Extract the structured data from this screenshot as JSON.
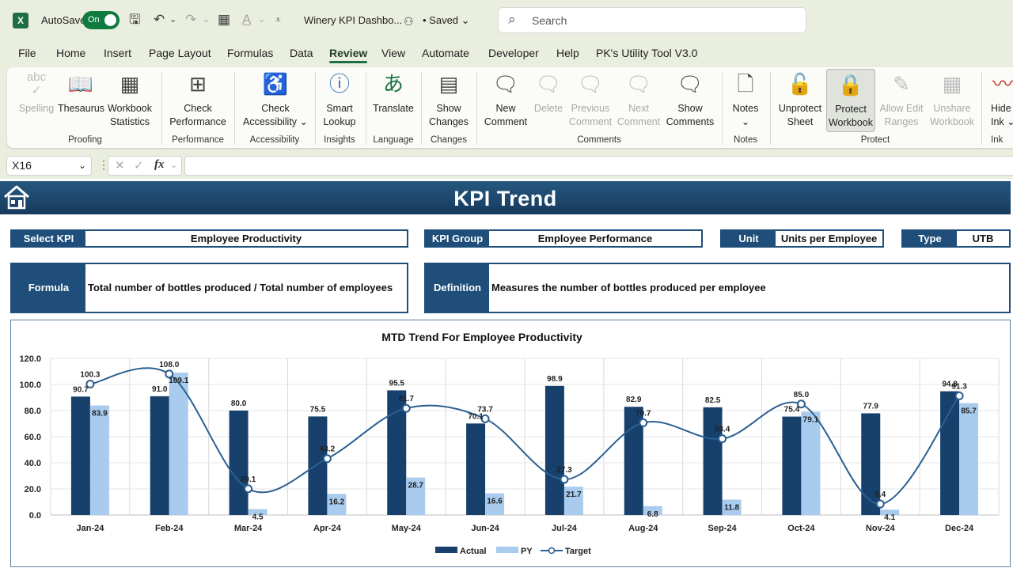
{
  "titlebar": {
    "app_logo": "X",
    "autosave_label": "AutoSave",
    "autosave_state": "On",
    "document_title": "Winery KPI Dashbo...",
    "save_status": "• Saved",
    "search_placeholder": "Search"
  },
  "menu": {
    "tabs": [
      "File",
      "Home",
      "Insert",
      "Page Layout",
      "Formulas",
      "Data",
      "Review",
      "View",
      "Automate",
      "Developer",
      "Help",
      "PK's Utility Tool V3.0"
    ],
    "active_tab": "Review"
  },
  "ribbon": {
    "buttons": {
      "spelling": "Spelling",
      "thesaurus": "Thesaurus",
      "workbook_statistics_1": "Workbook",
      "workbook_statistics_2": "Statistics",
      "check_performance_1": "Check",
      "check_performance_2": "Performance",
      "check_accessibility_1": "Check",
      "check_accessibility_2": "Accessibility ⌄",
      "smart_lookup_1": "Smart",
      "smart_lookup_2": "Lookup",
      "translate": "Translate",
      "show_changes_1": "Show",
      "show_changes_2": "Changes",
      "new_comment_1": "New",
      "new_comment_2": "Comment",
      "delete": "Delete",
      "previous_comment_1": "Previous",
      "previous_comment_2": "Comment",
      "next_comment_1": "Next",
      "next_comment_2": "Comment",
      "show_comments_1": "Show",
      "show_comments_2": "Comments",
      "notes_1": "Notes",
      "notes_2": "⌄",
      "unprotect_sheet_1": "Unprotect",
      "unprotect_sheet_2": "Sheet",
      "protect_workbook_1": "Protect",
      "protect_workbook_2": "Workbook",
      "allow_edit_ranges_1": "Allow Edit",
      "allow_edit_ranges_2": "Ranges",
      "unshare_workbook_1": "Unshare",
      "unshare_workbook_2": "Workbook",
      "hide_ink_1": "Hide",
      "hide_ink_2": "Ink ⌄"
    },
    "groups": {
      "proofing": "Proofing",
      "performance": "Performance",
      "accessibility": "Accessibility",
      "insights": "Insights",
      "language": "Language",
      "changes": "Changes",
      "comments": "Comments",
      "notes": "Notes",
      "protect": "Protect",
      "ink": "Ink"
    }
  },
  "formula_bar": {
    "name_box": "X16",
    "fx": "fx",
    "content": ""
  },
  "dashboard": {
    "title": "KPI Trend",
    "select_kpi_label": "Select KPI",
    "select_kpi_value": "Employee Productivity",
    "kpi_group_label": "KPI Group",
    "kpi_group_value": "Employee Performance",
    "unit_label": "Unit",
    "unit_value": "Units per Employee",
    "type_label": "Type",
    "type_value": "UTB",
    "formula_label": "Formula",
    "formula_value": "Total number of bottles produced / Total number of employees",
    "definition_label": "Definition",
    "definition_value": "Measures the number of bottles produced per employee"
  },
  "chart_data": {
    "type": "bar",
    "title": "MTD Trend For Employee Productivity",
    "categories": [
      "Jan-24",
      "Feb-24",
      "Mar-24",
      "Apr-24",
      "May-24",
      "Jun-24",
      "Jul-24",
      "Aug-24",
      "Sep-24",
      "Oct-24",
      "Nov-24",
      "Dec-24"
    ],
    "series": [
      {
        "name": "Actual",
        "kind": "bar",
        "color": "#17406d",
        "values": [
          90.7,
          91.0,
          80.0,
          75.5,
          95.5,
          70.1,
          98.9,
          82.9,
          82.5,
          75.4,
          77.9,
          94.8
        ]
      },
      {
        "name": "PY",
        "kind": "bar",
        "color": "#a9cbee",
        "values": [
          83.9,
          109.1,
          4.5,
          16.2,
          28.7,
          16.6,
          21.7,
          6.8,
          11.8,
          79.1,
          4.1,
          85.7
        ]
      },
      {
        "name": "Target",
        "kind": "line",
        "color": "#2b5f91",
        "values": [
          100.3,
          108.0,
          20.1,
          43.2,
          81.7,
          73.7,
          27.3,
          70.7,
          58.4,
          85.0,
          8.4,
          91.3
        ]
      }
    ],
    "yticks": [
      "0.0",
      "20.0",
      "40.0",
      "60.0",
      "80.0",
      "100.0",
      "120.0"
    ],
    "ylim": [
      0,
      120
    ],
    "grid": true,
    "legend": "bottom"
  }
}
